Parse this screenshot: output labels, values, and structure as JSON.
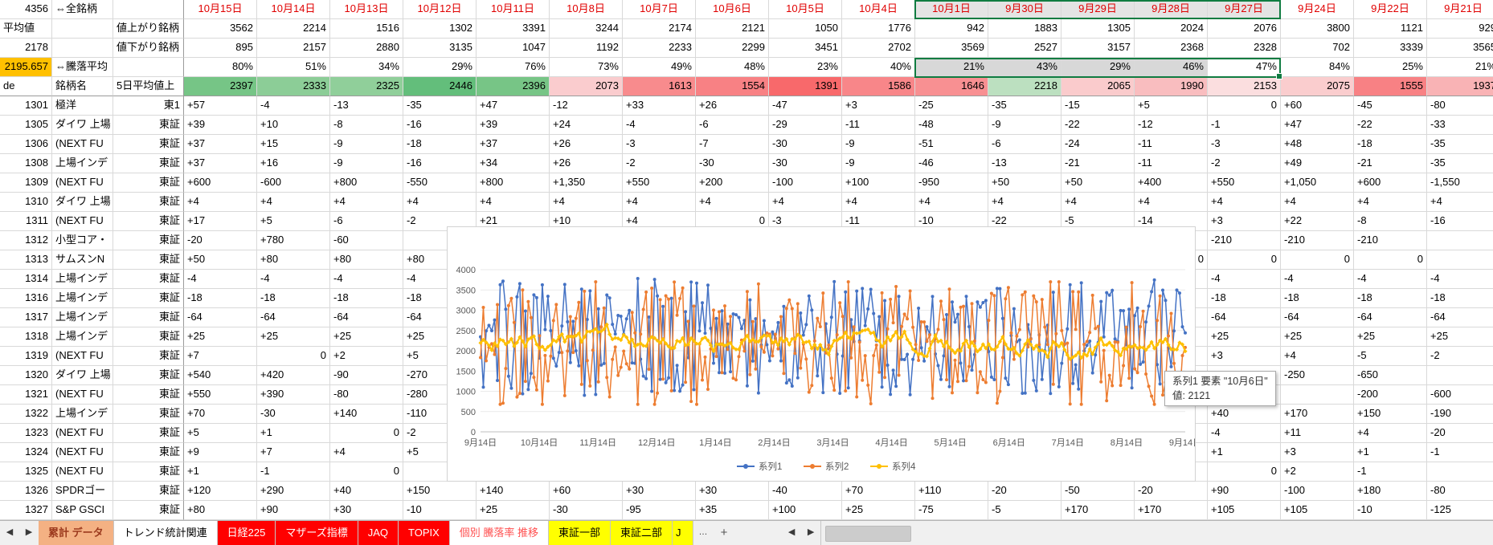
{
  "colors": {
    "selection_border": "#107C41",
    "selection_fill_dates": "#E4E4E4",
    "selection_fill_ratio": "#D8D8D8",
    "date_text": "#E00000",
    "avg_cell_highlight": "#FFC000"
  },
  "corner": {
    "r1a": "4356",
    "r1b": "⇔全銘柄",
    "r1c": "",
    "r2a": "平均値",
    "r2b": "",
    "r2c": "値上がり銘柄",
    "r3a": "2178",
    "r3b": "",
    "r3c": "値下がり銘柄",
    "r4a": "2195.657",
    "r4b": "⇔騰落平均",
    "r4c": "",
    "r5a": "de",
    "r5b": "銘柄名",
    "r5c": "5日平均値上"
  },
  "dates": [
    "10月15日",
    "10月14日",
    "10月13日",
    "10月12日",
    "10月11日",
    "10月8日",
    "10月7日",
    "10月6日",
    "10月5日",
    "10月4日",
    "10月1日",
    "9月30日",
    "9月29日",
    "9月28日",
    "9月27日",
    "9月24日",
    "9月22日",
    "9月21日"
  ],
  "up_counts": [
    "3562",
    "2214",
    "1516",
    "1302",
    "3391",
    "3244",
    "2174",
    "2121",
    "1050",
    "1776",
    "942",
    "1883",
    "1305",
    "2024",
    "2076",
    "3800",
    "1121",
    "929"
  ],
  "down_counts": [
    "895",
    "2157",
    "2880",
    "3135",
    "1047",
    "1192",
    "2233",
    "2299",
    "3451",
    "2702",
    "3569",
    "2527",
    "3157",
    "2368",
    "2328",
    "702",
    "3339",
    "3565"
  ],
  "ratio_row": [
    "80%",
    "51%",
    "34%",
    "29%",
    "76%",
    "73%",
    "49%",
    "48%",
    "23%",
    "40%",
    "21%",
    "43%",
    "29%",
    "46%",
    "47%",
    "84%",
    "25%",
    "21%"
  ],
  "avg5_row": [
    {
      "v": "2397",
      "bg": "#76C586"
    },
    {
      "v": "2333",
      "bg": "#8CCD97"
    },
    {
      "v": "2325",
      "bg": "#90CF9A"
    },
    {
      "v": "2446",
      "bg": "#63BE7B"
    },
    {
      "v": "2396",
      "bg": "#77C586"
    },
    {
      "v": "2073",
      "bg": "#FACCCE"
    },
    {
      "v": "1613",
      "bg": "#F88B8D"
    },
    {
      "v": "1554",
      "bg": "#F88184"
    },
    {
      "v": "1391",
      "bg": "#F8696B"
    },
    {
      "v": "1586",
      "bg": "#F88689"
    },
    {
      "v": "1646",
      "bg": "#F89092"
    },
    {
      "v": "2218",
      "bg": "#BCE0C0"
    },
    {
      "v": "2065",
      "bg": "#FACBCC"
    },
    {
      "v": "1990",
      "bg": "#F9BDBF"
    },
    {
      "v": "2153",
      "bg": "#FBDEDF"
    },
    {
      "v": "2075",
      "bg": "#FACDCE"
    },
    {
      "v": "1555",
      "bg": "#F88184"
    },
    {
      "v": "1937",
      "bg": "#F9B3B5"
    }
  ],
  "stock_rows": [
    {
      "code": "1301",
      "name": "極洋",
      "market": "東1",
      "values": [
        "+57",
        "-4",
        "-13",
        "-35",
        "+47",
        "-12",
        "+33",
        "+26",
        "-47",
        "+3",
        "-25",
        "-35",
        "-15",
        "+5",
        "0",
        "+60",
        "-45",
        "-80"
      ]
    },
    {
      "code": "1305",
      "name": "ダイワ 上場",
      "market": "東証",
      "values": [
        "+39",
        "+10",
        "-8",
        "-16",
        "+39",
        "+24",
        "-4",
        "-6",
        "-29",
        "-11",
        "-48",
        "-9",
        "-22",
        "-12",
        "-1",
        "+47",
        "-22",
        "-33"
      ]
    },
    {
      "code": "1306",
      "name": "(NEXT FU",
      "market": "東証",
      "values": [
        "+37",
        "+15",
        "-9",
        "-18",
        "+37",
        "+26",
        "-3",
        "-7",
        "-30",
        "-9",
        "-51",
        "-6",
        "-24",
        "-11",
        "-3",
        "+48",
        "-18",
        "-35"
      ]
    },
    {
      "code": "1308",
      "name": "上場インデ",
      "market": "東証",
      "values": [
        "+37",
        "+16",
        "-9",
        "-16",
        "+34",
        "+26",
        "-2",
        "-30",
        "-30",
        "-9",
        "-46",
        "-13",
        "-21",
        "-11",
        "-2",
        "+49",
        "-21",
        "-35"
      ]
    },
    {
      "code": "1309",
      "name": "(NEXT FU",
      "market": "東証",
      "values": [
        "+600",
        "-600",
        "+800",
        "-550",
        "+800",
        "+1,350",
        "+550",
        "+200",
        "-100",
        "+100",
        "-950",
        "+50",
        "+50",
        "+400",
        "+550",
        "+1,050",
        "+600",
        "-1,550"
      ]
    },
    {
      "code": "1310",
      "name": "ダイワ 上場",
      "market": "東証",
      "values": [
        "+4",
        "+4",
        "+4",
        "+4",
        "+4",
        "+4",
        "+4",
        "+4",
        "+4",
        "+4",
        "+4",
        "+4",
        "+4",
        "+4",
        "+4",
        "+4",
        "+4",
        "+4"
      ]
    },
    {
      "code": "1311",
      "name": "(NEXT FU",
      "market": "東証",
      "values": [
        "+17",
        "+5",
        "-6",
        "-2",
        "+21",
        "+10",
        "+4",
        "0",
        "-3",
        "-11",
        "-10",
        "-22",
        "-5",
        "-14",
        "+3",
        "+22",
        "-8",
        "-16"
      ]
    },
    {
      "code": "1312",
      "name": "小型コア・",
      "market": "東証",
      "values": [
        "-20",
        "+780",
        "-60",
        "",
        "",
        "",
        "",
        "",
        "",
        "",
        "",
        "",
        "",
        "",
        "-210",
        "-210",
        "-210",
        ""
      ]
    },
    {
      "code": "1313",
      "name": "サムスンN",
      "market": "東証",
      "values": [
        "+50",
        "+80",
        "+80",
        "+80",
        "",
        "",
        "",
        "",
        "",
        "",
        "",
        "",
        "",
        "0",
        "0",
        "0",
        "0",
        ""
      ]
    },
    {
      "code": "1314",
      "name": "上場インデ",
      "market": "東証",
      "values": [
        "-4",
        "-4",
        "-4",
        "-4",
        "",
        "",
        "",
        "",
        "",
        "",
        "",
        "",
        "",
        "",
        "-4",
        "-4",
        "-4",
        "-4"
      ]
    },
    {
      "code": "1316",
      "name": "上場インデ",
      "market": "東証",
      "values": [
        "-18",
        "-18",
        "-18",
        "-18",
        "",
        "",
        "",
        "",
        "",
        "",
        "",
        "",
        "",
        "",
        "-18",
        "-18",
        "-18",
        "-18"
      ]
    },
    {
      "code": "1317",
      "name": "上場インデ",
      "market": "東証",
      "values": [
        "-64",
        "-64",
        "-64",
        "-64",
        "",
        "",
        "",
        "",
        "",
        "",
        "",
        "",
        "",
        "",
        "-64",
        "-64",
        "-64",
        "-64"
      ]
    },
    {
      "code": "1318",
      "name": "上場インデ",
      "market": "東証",
      "values": [
        "+25",
        "+25",
        "+25",
        "+25",
        "",
        "",
        "",
        "",
        "",
        "",
        "",
        "",
        "",
        "",
        "+25",
        "+25",
        "+25",
        "+25"
      ]
    },
    {
      "code": "1319",
      "name": "(NEXT FU",
      "market": "東証",
      "values": [
        "+7",
        "0",
        "+2",
        "+5",
        "",
        "",
        "",
        "",
        "",
        "",
        "",
        "",
        "",
        "",
        "+3",
        "+4",
        "-5",
        "-2"
      ]
    },
    {
      "code": "1320",
      "name": "ダイワ 上場",
      "market": "東証",
      "values": [
        "+540",
        "+420",
        "-90",
        "-270",
        "",
        "",
        "",
        "",
        "",
        "",
        "",
        "",
        "",
        "",
        "-550",
        "-250",
        "-650",
        ""
      ]
    },
    {
      "code": "1321",
      "name": "(NEXT FU",
      "market": "東証",
      "values": [
        "+550",
        "+390",
        "-80",
        "-280",
        "",
        "",
        "",
        "",
        "",
        "",
        "",
        "",
        "",
        "",
        "",
        "",
        "-200",
        "-600"
      ]
    },
    {
      "code": "1322",
      "name": "上場インデ",
      "market": "東証",
      "values": [
        "+70",
        "-30",
        "+140",
        "-110",
        "",
        "",
        "",
        "",
        "",
        "",
        "",
        "",
        "",
        "",
        "+40",
        "+170",
        "+150",
        "-190"
      ]
    },
    {
      "code": "1323",
      "name": "(NEXT FU",
      "market": "東証",
      "values": [
        "+5",
        "+1",
        "0",
        "-2",
        "",
        "",
        "",
        "",
        "",
        "",
        "",
        "",
        "",
        "",
        "-4",
        "+11",
        "+4",
        "-20"
      ]
    },
    {
      "code": "1324",
      "name": "(NEXT FU",
      "market": "東証",
      "values": [
        "+9",
        "+7",
        "+4",
        "+5",
        "",
        "",
        "",
        "",
        "",
        "",
        "",
        "",
        "",
        "",
        "+1",
        "+3",
        "+1",
        "-1"
      ]
    },
    {
      "code": "1325",
      "name": "(NEXT FU",
      "market": "東証",
      "values": [
        "+1",
        "-1",
        "0",
        "",
        "",
        "",
        "",
        "",
        "",
        "",
        "",
        "",
        "",
        "",
        "0",
        "+2",
        "-1",
        ""
      ]
    },
    {
      "code": "1326",
      "name": "SPDRゴー",
      "market": "東証",
      "values": [
        "+120",
        "+290",
        "+40",
        "+150",
        "+140",
        "+60",
        "+30",
        "+30",
        "-40",
        "+70",
        "+110",
        "-20",
        "-50",
        "-20",
        "+90",
        "-100",
        "+180",
        "-80"
      ]
    },
    {
      "code": "1327",
      "name": "S&P GSCI",
      "market": "東証",
      "values": [
        "+80",
        "+90",
        "+30",
        "-10",
        "+25",
        "-30",
        "-95",
        "+35",
        "+100",
        "+25",
        "-75",
        "-5",
        "+170",
        "+170",
        "+105",
        "+105",
        "-10",
        "-125"
      ]
    }
  ],
  "chart": {
    "type": "line",
    "ylim": [
      0,
      4000
    ],
    "ytick_step": 500,
    "y_ticks": [
      "0",
      "500",
      "1000",
      "1500",
      "2000",
      "2500",
      "3000",
      "3500",
      "4000"
    ],
    "x_labels": [
      "9月14日",
      "10月14日",
      "11月14日",
      "12月14日",
      "1月14日",
      "2月14日",
      "3月14日",
      "4月14日",
      "5月14日",
      "6月14日",
      "7月14日",
      "8月14日",
      "9月14日"
    ],
    "legend_position": "bottom",
    "n_points": 252,
    "series": [
      {
        "name": "系列1",
        "color": "#4472C4",
        "range": [
          900,
          3800
        ],
        "pattern": "highly volatile daily advancing-issues count"
      },
      {
        "name": "系列2",
        "color": "#ED7D31",
        "range": [
          700,
          3700
        ],
        "pattern": "highly volatile daily declining-issues count, anti-correlated with 系列1"
      },
      {
        "name": "系列4",
        "color": "#FFC000",
        "range": [
          1400,
          2750
        ],
        "pattern": "smoother 5-day moving average"
      }
    ],
    "tooltip": {
      "line1": "系列1 要素 \"10月6日\"",
      "line2": "値: 2121"
    }
  },
  "sheet_nav": {
    "prev": "◀",
    "next": "▶",
    "more": "…",
    "add": "+",
    "hprev": "◀",
    "hnext": "▶"
  },
  "sheet_tabs": [
    {
      "label": "累計 データ",
      "bg": "#F4B183",
      "fg": "#9C3A1E",
      "bold": true,
      "active": true
    },
    {
      "label": "トレンド統計関連",
      "bg": "#FFFFFF",
      "fg": "#000000"
    },
    {
      "label": "日経225",
      "bg": "#FF0000",
      "fg": "#FFFFFF"
    },
    {
      "label": "マザーズ指標",
      "bg": "#FF0000",
      "fg": "#FFFFFF"
    },
    {
      "label": "JAQ",
      "bg": "#FF0000",
      "fg": "#FFFFFF"
    },
    {
      "label": "TOPIX",
      "bg": "#FF0000",
      "fg": "#FFFFFF"
    },
    {
      "label": "個別 騰落率 推移",
      "bg": "#FFFFFF",
      "fg": "#FF5050"
    },
    {
      "label": "東証一部",
      "bg": "#FFFF00",
      "fg": "#000000"
    },
    {
      "label": "東証二部",
      "bg": "#FFFF00",
      "fg": "#000000"
    },
    {
      "label": "J",
      "bg": "#FFFF00",
      "fg": "#000000",
      "width": 26
    }
  ]
}
